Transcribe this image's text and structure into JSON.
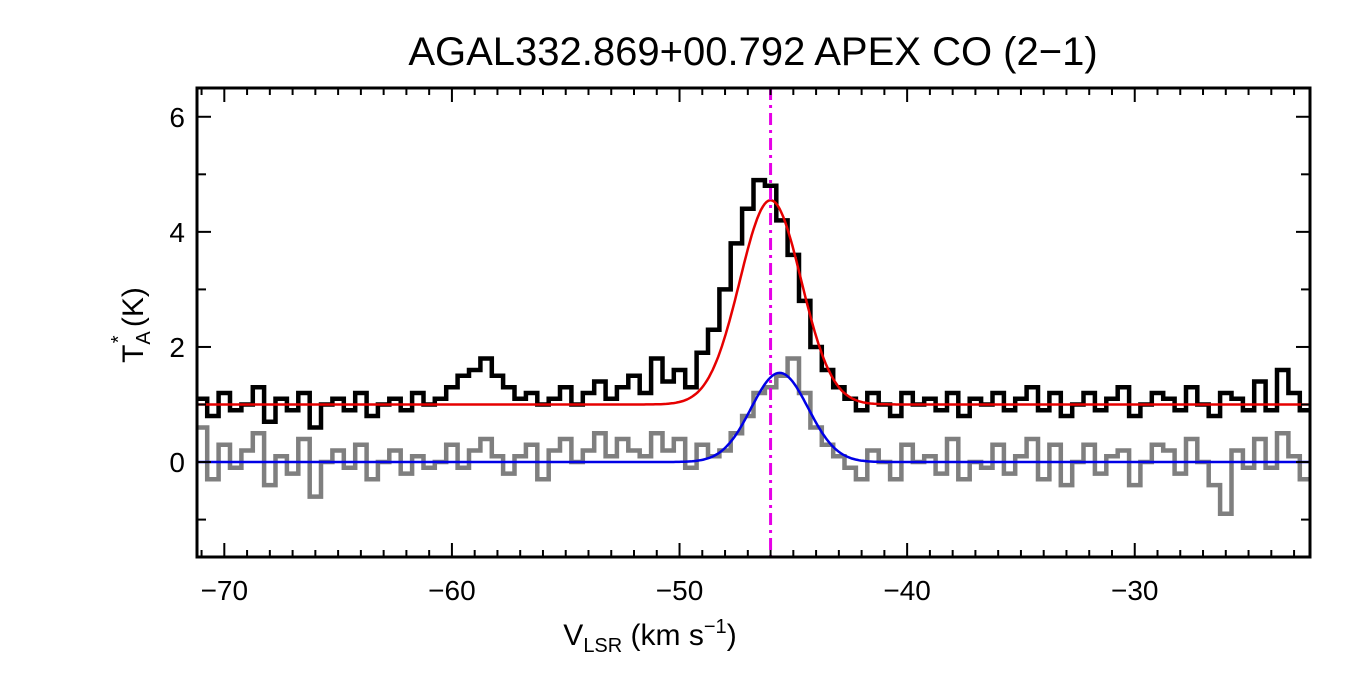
{
  "chart_data": {
    "type": "line",
    "title": "AGAL332.869+00.792  APEX CO (2−1)",
    "xlabel": {
      "main": "V",
      "sub": "LSR",
      "units": " (km s",
      "sup": "−1",
      "close": ")"
    },
    "ylabel": {
      "main": "T",
      "sub": "A",
      "sup": "*",
      "units": " (K)"
    },
    "xlim": [
      -71.2,
      -22.3
    ],
    "ylim": [
      -1.65,
      6.5
    ],
    "x_ticks": [
      -70,
      -60,
      -50,
      -40,
      -30
    ],
    "x_tick_labels": [
      "−70",
      "−60",
      "−50",
      "−40",
      "−30"
    ],
    "y_ticks": [
      0,
      2,
      4,
      6
    ],
    "y_tick_labels": [
      "0",
      "2",
      "4",
      "6"
    ],
    "vline": {
      "x": -46.0,
      "color": "#e600e6",
      "style": "dash-dot"
    },
    "series": [
      {
        "id": "spectrum",
        "color": "#000000",
        "style": "step",
        "x": [
          -71.0,
          -70.5,
          -70.0,
          -69.5,
          -69.0,
          -68.5,
          -68.0,
          -67.5,
          -67.0,
          -66.5,
          -66.0,
          -65.5,
          -65.0,
          -64.5,
          -64.0,
          -63.5,
          -63.0,
          -62.5,
          -62.0,
          -61.5,
          -61.0,
          -60.5,
          -60.0,
          -59.5,
          -59.0,
          -58.5,
          -58.0,
          -57.5,
          -57.0,
          -56.5,
          -56.0,
          -55.5,
          -55.0,
          -54.5,
          -54.0,
          -53.5,
          -53.0,
          -52.5,
          -52.0,
          -51.5,
          -51.0,
          -50.5,
          -50.0,
          -49.5,
          -49.0,
          -48.5,
          -48.0,
          -47.5,
          -47.0,
          -46.5,
          -46.0,
          -45.5,
          -45.0,
          -44.5,
          -44.0,
          -43.5,
          -43.0,
          -42.5,
          -42.0,
          -41.5,
          -41.0,
          -40.5,
          -40.0,
          -39.5,
          -39.0,
          -38.5,
          -38.0,
          -37.5,
          -37.0,
          -36.5,
          -36.0,
          -35.5,
          -35.0,
          -34.5,
          -34.0,
          -33.5,
          -33.0,
          -32.5,
          -32.0,
          -31.5,
          -31.0,
          -30.5,
          -30.0,
          -29.5,
          -29.0,
          -28.5,
          -28.0,
          -27.5,
          -27.0,
          -26.5,
          -26.0,
          -25.5,
          -25.0,
          -24.5,
          -24.0,
          -23.5,
          -23.0,
          -22.5
        ],
        "y": [
          1.1,
          0.8,
          1.2,
          0.9,
          1.0,
          1.3,
          0.7,
          1.1,
          0.9,
          1.2,
          0.6,
          1.0,
          1.1,
          0.9,
          1.2,
          0.8,
          1.0,
          1.1,
          0.9,
          1.2,
          1.0,
          1.1,
          1.3,
          1.5,
          1.6,
          1.8,
          1.5,
          1.3,
          1.1,
          1.2,
          1.0,
          1.1,
          1.3,
          1.0,
          1.2,
          1.4,
          1.1,
          1.3,
          1.5,
          1.2,
          1.8,
          1.4,
          1.6,
          1.3,
          1.9,
          2.3,
          3.0,
          3.8,
          4.4,
          4.9,
          4.8,
          4.2,
          3.6,
          2.8,
          2.0,
          1.6,
          1.3,
          1.1,
          0.9,
          1.2,
          1.0,
          0.8,
          1.2,
          1.0,
          1.1,
          0.9,
          1.2,
          0.8,
          1.1,
          1.0,
          1.2,
          0.9,
          1.1,
          1.3,
          0.9,
          1.2,
          0.8,
          1.0,
          1.2,
          0.9,
          1.1,
          1.3,
          0.8,
          1.0,
          1.2,
          1.1,
          0.9,
          1.3,
          1.0,
          0.8,
          1.2,
          1.1,
          0.9,
          1.4,
          0.9,
          1.6,
          1.2,
          0.9
        ]
      },
      {
        "id": "residual",
        "color": "#7f7f7f",
        "style": "step",
        "x": [
          -71.0,
          -70.5,
          -70.0,
          -69.5,
          -69.0,
          -68.5,
          -68.0,
          -67.5,
          -67.0,
          -66.5,
          -66.0,
          -65.5,
          -65.0,
          -64.5,
          -64.0,
          -63.5,
          -63.0,
          -62.5,
          -62.0,
          -61.5,
          -61.0,
          -60.5,
          -60.0,
          -59.5,
          -59.0,
          -58.5,
          -58.0,
          -57.5,
          -57.0,
          -56.5,
          -56.0,
          -55.5,
          -55.0,
          -54.5,
          -54.0,
          -53.5,
          -53.0,
          -52.5,
          -52.0,
          -51.5,
          -51.0,
          -50.5,
          -50.0,
          -49.5,
          -49.0,
          -48.5,
          -48.0,
          -47.5,
          -47.0,
          -46.5,
          -46.0,
          -45.5,
          -45.0,
          -44.5,
          -44.0,
          -43.5,
          -43.0,
          -42.5,
          -42.0,
          -41.5,
          -41.0,
          -40.5,
          -40.0,
          -39.5,
          -39.0,
          -38.5,
          -38.0,
          -37.5,
          -37.0,
          -36.5,
          -36.0,
          -35.5,
          -35.0,
          -34.5,
          -34.0,
          -33.5,
          -33.0,
          -32.5,
          -32.0,
          -31.5,
          -31.0,
          -30.5,
          -30.0,
          -29.5,
          -29.0,
          -28.5,
          -28.0,
          -27.5,
          -27.0,
          -26.5,
          -26.0,
          -25.5,
          -25.0,
          -24.5,
          -24.0,
          -23.5,
          -23.0,
          -22.5
        ],
        "y": [
          0.6,
          -0.3,
          0.3,
          -0.1,
          0.2,
          0.5,
          -0.4,
          0.1,
          -0.2,
          0.4,
          -0.6,
          0.0,
          0.2,
          -0.1,
          0.3,
          -0.3,
          0.0,
          0.2,
          -0.2,
          0.1,
          -0.1,
          0.0,
          0.3,
          -0.1,
          0.2,
          0.4,
          0.1,
          -0.2,
          0.1,
          0.3,
          -0.3,
          0.2,
          0.4,
          0.0,
          0.2,
          0.5,
          0.1,
          0.4,
          0.2,
          0.1,
          0.5,
          0.2,
          0.4,
          -0.1,
          0.3,
          0.1,
          0.2,
          0.5,
          0.8,
          1.2,
          1.3,
          1.5,
          1.8,
          1.2,
          0.6,
          0.3,
          0.1,
          -0.1,
          -0.3,
          0.2,
          0.0,
          -0.3,
          0.3,
          0.0,
          0.1,
          -0.2,
          0.4,
          -0.3,
          0.0,
          -0.1,
          0.3,
          -0.2,
          0.1,
          0.4,
          -0.3,
          0.3,
          -0.4,
          0.0,
          0.3,
          -0.2,
          0.1,
          0.2,
          -0.4,
          0.0,
          0.3,
          0.2,
          -0.2,
          0.4,
          0.0,
          -0.4,
          -0.9,
          0.2,
          -0.1,
          0.4,
          -0.1,
          0.5,
          0.1,
          -0.3
        ]
      },
      {
        "id": "fit-total",
        "color": "#e60000",
        "style": "gaussian",
        "baseline": 1.0,
        "amplitude": 3.55,
        "center": -46.0,
        "sigma": 1.35
      },
      {
        "id": "fit-component",
        "color": "#0000e6",
        "style": "gaussian",
        "baseline": 0.0,
        "amplitude": 1.55,
        "center": -45.6,
        "sigma": 1.25
      }
    ]
  }
}
